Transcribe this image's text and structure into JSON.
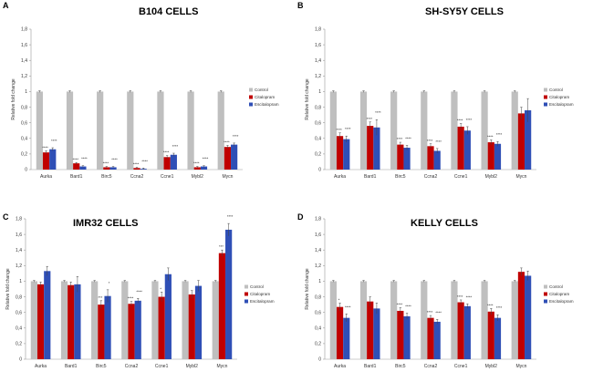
{
  "legend": [
    "Control",
    "Citalopram",
    "Escitalopram"
  ],
  "colors": {
    "control": "#bfbfbf",
    "citalopram": "#c00000",
    "escitalopram": "#2f4fb6"
  },
  "chart_data": [
    {
      "panel": "A",
      "type": "bar",
      "title": "B104 CELLS",
      "categories": [
        "Aurka",
        "Bard1",
        "Birc5",
        "Ccna2",
        "Ccne1",
        "Mybl2",
        "Mycn"
      ],
      "ylabel": "Relative fold change",
      "ylim": [
        0,
        1.8
      ],
      "yticks": [
        "0",
        "0,2",
        "0,4",
        "0,6",
        "0,8",
        "1",
        "1,2",
        "1,4",
        "1,6",
        "1,8"
      ],
      "series": [
        {
          "name": "Control",
          "values": [
            1,
            1,
            1,
            1,
            1,
            1,
            1
          ],
          "errors": [
            0.01,
            0.01,
            0.01,
            0.01,
            0.01,
            0.01,
            0.01
          ]
        },
        {
          "name": "Citalopram",
          "values": [
            0.22,
            0.08,
            0.03,
            0.02,
            0.16,
            0.03,
            0.29
          ],
          "errors": [
            0.02,
            0.01,
            0.01,
            0.01,
            0.02,
            0.01,
            0.02
          ]
        },
        {
          "name": "Escitalopram",
          "values": [
            0.26,
            0.04,
            0.03,
            0.01,
            0.19,
            0.04,
            0.32
          ],
          "errors": [
            0.02,
            0.01,
            0.01,
            0.01,
            0.02,
            0.01,
            0.02
          ]
        }
      ],
      "significance": [
        [
          "****",
          "****"
        ],
        [
          "****",
          "****"
        ],
        [
          "****",
          "****"
        ],
        [
          "****",
          "****"
        ],
        [
          "****",
          "****"
        ],
        [
          "****",
          "****"
        ],
        [
          "****",
          "****"
        ]
      ]
    },
    {
      "panel": "B",
      "type": "bar",
      "title": "SH-SY5Y CELLS",
      "categories": [
        "Aurka",
        "Bard1",
        "Birc5",
        "Ccna2",
        "Ccne1",
        "Mybl2",
        "Mycn"
      ],
      "ylabel": "Relative fold change",
      "ylim": [
        0,
        1.8
      ],
      "yticks": [
        "0",
        "0,2",
        "0,4",
        "0,6",
        "0,8",
        "1",
        "1,2",
        "1,4",
        "1,6",
        "1,8"
      ],
      "series": [
        {
          "name": "Control",
          "values": [
            1,
            1,
            1,
            1,
            1,
            1,
            1
          ],
          "errors": [
            0.01,
            0.01,
            0.01,
            0.01,
            0.01,
            0.01,
            0.01
          ]
        },
        {
          "name": "Citalopram",
          "values": [
            0.43,
            0.56,
            0.32,
            0.3,
            0.55,
            0.35,
            0.72
          ],
          "errors": [
            0.04,
            0.05,
            0.03,
            0.03,
            0.04,
            0.03,
            0.08
          ]
        },
        {
          "name": "Escitalopram",
          "values": [
            0.39,
            0.54,
            0.28,
            0.24,
            0.5,
            0.33,
            0.76
          ],
          "errors": [
            0.04,
            0.1,
            0.03,
            0.03,
            0.05,
            0.03,
            0.15
          ]
        }
      ],
      "significance": [
        [
          "****",
          "****"
        ],
        [
          "****",
          "****"
        ],
        [
          "****",
          "****"
        ],
        [
          "****",
          "****"
        ],
        [
          "****",
          "****"
        ],
        [
          "****",
          "****"
        ],
        [
          "",
          ""
        ]
      ]
    },
    {
      "panel": "C",
      "type": "bar",
      "title": "IMR32 CELLS",
      "categories": [
        "Aurka",
        "Bard1",
        "Birc5",
        "Ccna2",
        "Ccne1",
        "Mybl2",
        "Mycn"
      ],
      "ylabel": "Relative fold change",
      "ylim": [
        0,
        1.8
      ],
      "yticks": [
        "0",
        "0,2",
        "0,4",
        "0,6",
        "0,8",
        "1",
        "1,2",
        "1,4",
        "1,6",
        "1,8"
      ],
      "series": [
        {
          "name": "Control",
          "values": [
            1,
            1,
            1,
            1,
            1,
            1,
            1
          ],
          "errors": [
            0.01,
            0.01,
            0.01,
            0.01,
            0.01,
            0.01,
            0.01
          ]
        },
        {
          "name": "Citalopram",
          "values": [
            0.96,
            0.95,
            0.7,
            0.71,
            0.8,
            0.83,
            1.36
          ],
          "errors": [
            0.03,
            0.04,
            0.05,
            0.03,
            0.06,
            0.05,
            0.04
          ]
        },
        {
          "name": "Escitalopram",
          "values": [
            1.13,
            0.96,
            0.81,
            0.75,
            1.09,
            0.94,
            1.66
          ],
          "errors": [
            0.06,
            0.1,
            0.08,
            0.03,
            0.08,
            0.07,
            0.08
          ]
        }
      ],
      "significance": [
        [
          "",
          ""
        ],
        [
          "",
          ""
        ],
        [
          "***",
          "*"
        ],
        [
          "****",
          "****"
        ],
        [
          "*",
          ""
        ],
        [
          "",
          ""
        ],
        [
          "***",
          "****"
        ]
      ]
    },
    {
      "panel": "D",
      "type": "bar",
      "title": "KELLY CELLS",
      "categories": [
        "Aurka",
        "Bard1",
        "Birc5",
        "Ccna2",
        "Ccne1",
        "Mybl2",
        "Mycn"
      ],
      "ylabel": "Relative fold change",
      "ylim": [
        0,
        1.8
      ],
      "yticks": [
        "0",
        "0,2",
        "0,4",
        "0,6",
        "0,8",
        "1",
        "1,2",
        "1,4",
        "1,6",
        "1,8"
      ],
      "series": [
        {
          "name": "Control",
          "values": [
            1,
            1,
            1,
            1,
            1,
            1,
            1
          ],
          "errors": [
            0.01,
            0.01,
            0.01,
            0.01,
            0.01,
            0.01,
            0.01
          ]
        },
        {
          "name": "Citalopram",
          "values": [
            0.67,
            0.74,
            0.62,
            0.53,
            0.73,
            0.61,
            1.12
          ],
          "errors": [
            0.05,
            0.06,
            0.04,
            0.03,
            0.03,
            0.04,
            0.05
          ]
        },
        {
          "name": "Escitalopram",
          "values": [
            0.53,
            0.65,
            0.55,
            0.48,
            0.68,
            0.53,
            1.07
          ],
          "errors": [
            0.05,
            0.07,
            0.04,
            0.03,
            0.03,
            0.04,
            0.06
          ]
        }
      ],
      "significance": [
        [
          "*",
          "****"
        ],
        [
          "",
          ""
        ],
        [
          "****",
          "****"
        ],
        [
          "****",
          "****"
        ],
        [
          "****",
          "****"
        ],
        [
          "****",
          "****"
        ],
        [
          "",
          ""
        ]
      ]
    }
  ]
}
